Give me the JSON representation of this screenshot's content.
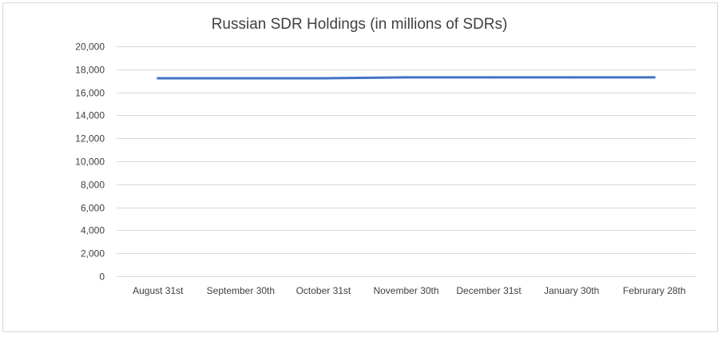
{
  "chart_data": {
    "type": "line",
    "title": "Russian SDR Holdings (in millions of SDRs)",
    "xlabel": "",
    "ylabel": "",
    "categories": [
      "August 31st",
      "September 30th",
      "October 31st",
      "November 30th",
      "December 31st",
      "January 30th",
      "Februrary 28th"
    ],
    "series": [
      {
        "values": [
          17220,
          17220,
          17220,
          17300,
          17300,
          17300,
          17300
        ],
        "color": "#4472c4"
      }
    ],
    "ylim": [
      0,
      20000
    ],
    "yticks": [
      0,
      2000,
      4000,
      6000,
      8000,
      10000,
      12000,
      14000,
      16000,
      18000,
      20000
    ],
    "ytick_labels": [
      "0",
      "2,000",
      "4,000",
      "6,000",
      "8,000",
      "10,000",
      "12,000",
      "14,000",
      "16,000",
      "18,000",
      "20,000"
    ],
    "grid": true,
    "legend": "none"
  }
}
